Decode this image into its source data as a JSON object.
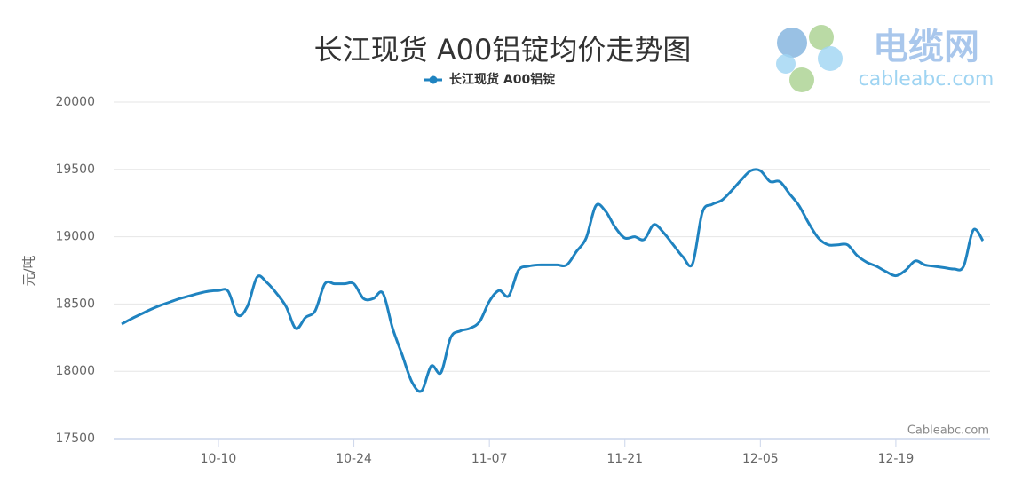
{
  "chart_data": {
    "type": "line",
    "title": "长江现货 A00铝锭均价走势图",
    "y_label": "元/吨",
    "credit": "Cableabc.com",
    "logo_text": "电缆网",
    "logo_url": "cableabc.com",
    "categories": [
      null,
      null,
      null,
      null,
      null,
      null,
      null,
      null,
      null,
      null,
      "10-10",
      null,
      null,
      null,
      null,
      null,
      null,
      null,
      null,
      null,
      null,
      null,
      null,
      null,
      "10-24",
      null,
      null,
      null,
      null,
      null,
      null,
      null,
      null,
      null,
      null,
      null,
      null,
      null,
      "11-07",
      null,
      null,
      null,
      null,
      null,
      null,
      null,
      null,
      null,
      null,
      null,
      null,
      null,
      "11-21",
      null,
      null,
      null,
      null,
      null,
      null,
      null,
      null,
      null,
      null,
      null,
      null,
      null,
      "12-05",
      null,
      null,
      null,
      null,
      null,
      null,
      null,
      null,
      null,
      null,
      null,
      null,
      null,
      "12-19",
      null,
      null,
      null,
      null,
      null,
      null,
      null,
      null,
      null
    ],
    "series": [
      {
        "name": "长江现货 A00铝锭",
        "color": "#1f83c0",
        "values": [
          18351,
          18390,
          18425,
          18460,
          18490,
          18515,
          18540,
          18560,
          18580,
          18595,
          18600,
          18595,
          18417,
          18483,
          18700,
          18660,
          18580,
          18480,
          18318,
          18400,
          18450,
          18650,
          18650,
          18650,
          18650,
          18540,
          18540,
          18580,
          18320,
          18120,
          17920,
          17855,
          18040,
          17990,
          18250,
          18300,
          18320,
          18370,
          18520,
          18600,
          18560,
          18750,
          18780,
          18790,
          18790,
          18790,
          18790,
          18890,
          18990,
          19230,
          19190,
          19070,
          18990,
          19000,
          18980,
          19090,
          19030,
          18940,
          18850,
          18800,
          19180,
          19240,
          19270,
          19340,
          19420,
          19490,
          19490,
          19410,
          19410,
          19320,
          19230,
          19100,
          18990,
          18940,
          18940,
          18940,
          18860,
          18810,
          18780,
          18740,
          18710,
          18750,
          18820,
          18790,
          18780,
          18770,
          18760,
          18780,
          19050,
          18970
        ]
      }
    ],
    "ylim": [
      17500,
      20000
    ],
    "yticks": [
      17500,
      18000,
      18500,
      19000,
      19500,
      20000
    ],
    "grid": true
  }
}
